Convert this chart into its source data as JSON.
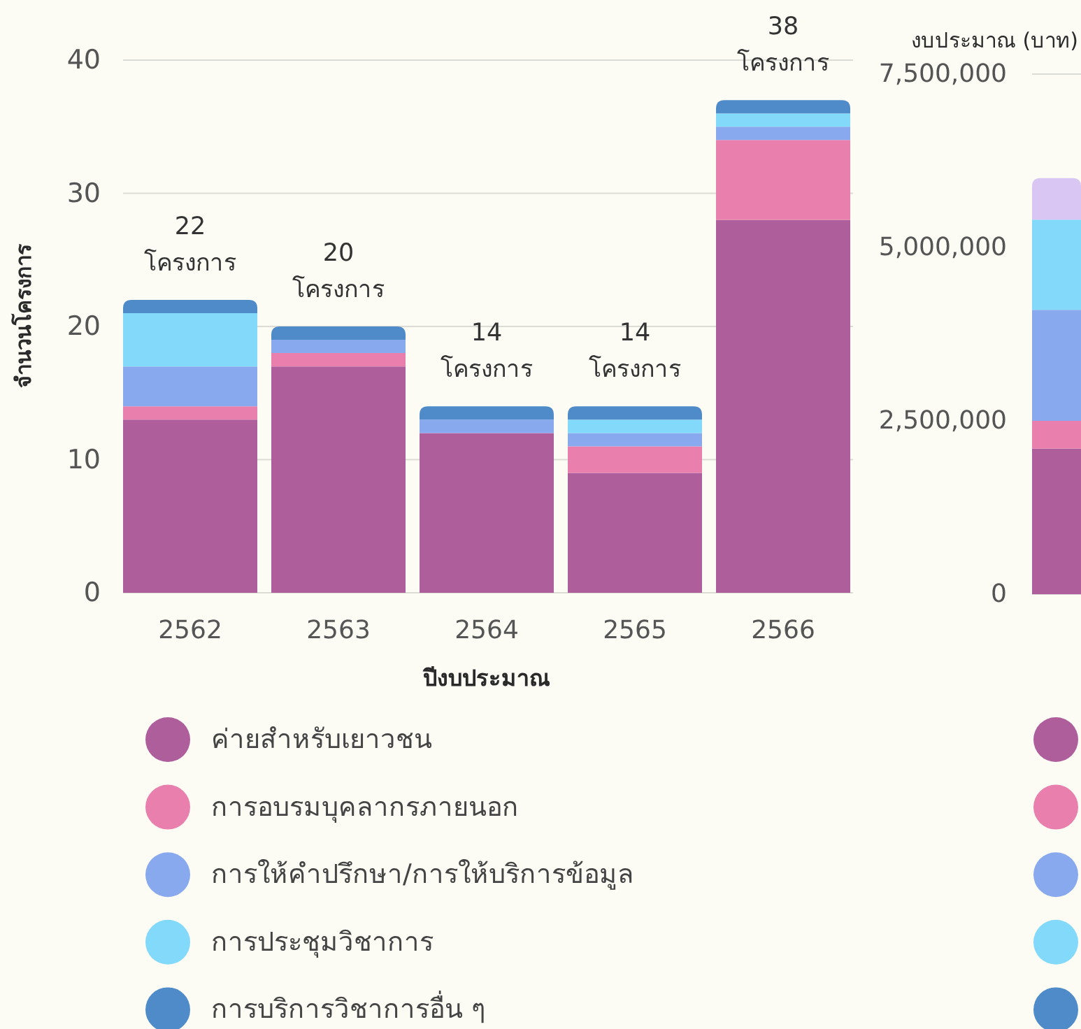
{
  "chart_data": [
    {
      "type": "bar",
      "stacked": true,
      "categories": [
        "2562",
        "2563",
        "2564",
        "2565",
        "2566"
      ],
      "xlabel": "ปีงบประมาณ",
      "ylabel": "จำนวนโครงการ",
      "ylim": [
        0,
        40
      ],
      "yticks": [
        0,
        10,
        20,
        30,
        40
      ],
      "grid": "y",
      "legend": "bottom",
      "totals": [
        "22 โครงการ",
        "20 โครงการ",
        "14 โครงการ",
        "14 โครงการ",
        "38 โครงการ"
      ],
      "series": [
        {
          "name": "ค่ายสำหรับเยาวชน",
          "color": "#af5e9c",
          "values": [
            13,
            17,
            12,
            9,
            28
          ]
        },
        {
          "name": "การอบรมบุคลากรภายนอก",
          "color": "#e97fac",
          "values": [
            1,
            1,
            0,
            2,
            6
          ]
        },
        {
          "name": "การให้คำปรึกษา/การให้บริการข้อมูล",
          "color": "#89a9ef",
          "values": [
            3,
            1,
            1,
            1,
            1
          ]
        },
        {
          "name": "การประชุมวิชาการ",
          "color": "#82d9fa",
          "values": [
            4,
            0,
            0,
            1,
            1
          ]
        },
        {
          "name": "การบริการวิชาการอื่น ๆ",
          "color": "#4f8bc9",
          "values": [
            1,
            1,
            1,
            1,
            1
          ]
        }
      ]
    },
    {
      "type": "bar",
      "stacked": true,
      "categories": [
        null
      ],
      "ylabel": "งบประมาณ (บาท)",
      "ylim": [
        0,
        7500000
      ],
      "yticks": [
        {
          "value": 0,
          "label": "0"
        },
        {
          "value": 2500000,
          "label": "2,500,000"
        },
        {
          "value": 5000000,
          "label": "5,000,000"
        },
        {
          "value": 7500000,
          "label": "7,500,000"
        }
      ],
      "grid": "y",
      "series": [
        {
          "color": "#af5e9c",
          "values": [
            2100000
          ]
        },
        {
          "color": "#e97fac",
          "values": [
            400000
          ]
        },
        {
          "color": "#89a9ef",
          "values": [
            1600000
          ]
        },
        {
          "color": "#82d9fa",
          "values": [
            1300000
          ]
        },
        {
          "color": "#d9c6f2",
          "values": [
            600000
          ]
        }
      ]
    }
  ]
}
